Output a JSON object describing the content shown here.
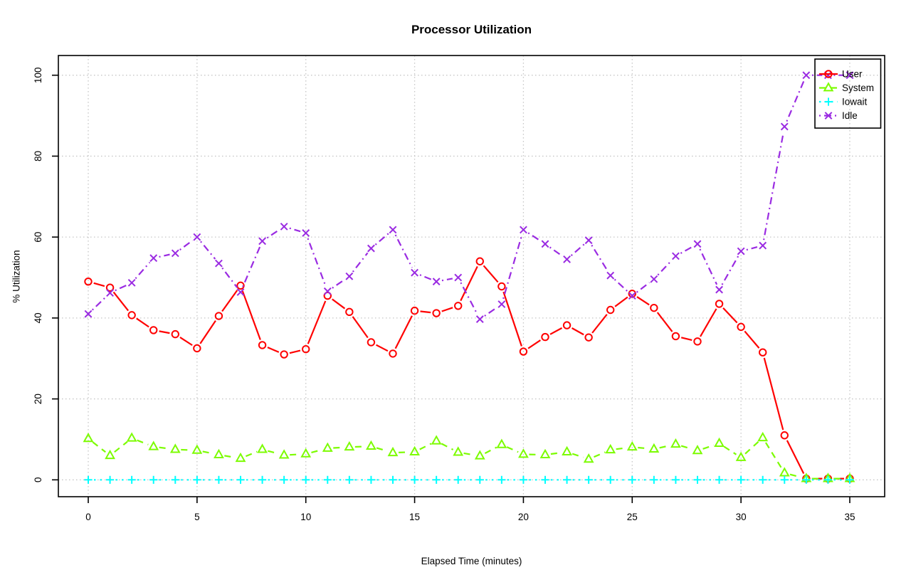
{
  "title": "Processor Utilization",
  "x_axis": {
    "label": "Elapsed Time (minutes)",
    "ticks": [
      0,
      5,
      10,
      15,
      20,
      25,
      30,
      35
    ]
  },
  "y_axis": {
    "label": "% Utilization",
    "ticks": [
      0,
      20,
      40,
      60,
      80,
      100
    ]
  },
  "legend": {
    "position": "top-right",
    "items": [
      "User",
      "System",
      "Iowait",
      "Idle"
    ]
  },
  "colors": {
    "user": "#ff0000",
    "system": "#7cfc00",
    "iowait": "#00ffff",
    "idle": "#9a2be2",
    "grid": "#c6c6c6",
    "axis": "#000000"
  },
  "chart_data": {
    "type": "line",
    "title": "Processor Utilization",
    "xlabel": "Elapsed Time (minutes)",
    "ylabel": "% Utilization",
    "xlim": [
      0,
      35
    ],
    "ylim": [
      0,
      100
    ],
    "grid": true,
    "legend_position": "top-right",
    "x": [
      0,
      1,
      2,
      3,
      4,
      5,
      6,
      7,
      8,
      9,
      10,
      11,
      12,
      13,
      14,
      15,
      16,
      17,
      18,
      19,
      20,
      21,
      22,
      23,
      24,
      25,
      26,
      27,
      28,
      29,
      30,
      31,
      32,
      33,
      34,
      35
    ],
    "series": [
      {
        "name": "User",
        "color": "#ff0000",
        "marker": "circle",
        "linestyle": "solid",
        "values": [
          49,
          47.5,
          40.7,
          37,
          36,
          32.5,
          40.5,
          48,
          33.3,
          31,
          32.3,
          45.5,
          41.5,
          34,
          31.2,
          41.8,
          41.2,
          43,
          54,
          47.8,
          31.7,
          35.3,
          38.2,
          35.2,
          42,
          46,
          42.5,
          35.5,
          34.2,
          43.5,
          37.8,
          31.5,
          11,
          0.3,
          0.3,
          0.3
        ]
      },
      {
        "name": "System",
        "color": "#7cfc00",
        "marker": "triangle",
        "linestyle": "dashed",
        "values": [
          10.2,
          6,
          10.3,
          8.2,
          7.5,
          7.3,
          6.2,
          5.3,
          7.5,
          6.1,
          6.4,
          7.8,
          8.1,
          8.3,
          6.7,
          6.9,
          9.6,
          6.8,
          5.9,
          8.7,
          6.3,
          6.2,
          6.9,
          5.1,
          7.4,
          8.1,
          7.6,
          8.8,
          7.2,
          9,
          5.5,
          10.4,
          1.7,
          0.3,
          0.3,
          0.3
        ]
      },
      {
        "name": "Iowait",
        "color": "#00ffff",
        "marker": "plus",
        "linestyle": "dotted",
        "values": [
          0,
          0,
          0,
          0,
          0,
          0,
          0,
          0,
          0,
          0,
          0,
          0,
          0,
          0,
          0,
          0,
          0,
          0,
          0,
          0,
          0,
          0,
          0,
          0,
          0,
          0,
          0,
          0,
          0,
          0,
          0,
          0,
          0,
          0,
          0,
          0
        ]
      },
      {
        "name": "Idle",
        "color": "#9a2be2",
        "marker": "x",
        "linestyle": "dashdot",
        "values": [
          41,
          46.2,
          48.7,
          54.8,
          56,
          60,
          53.5,
          46.4,
          59,
          62.6,
          61,
          46.6,
          50.3,
          57.2,
          61.8,
          51.2,
          49,
          50,
          39.7,
          43.4,
          61.8,
          58.3,
          54.5,
          59.2,
          50.5,
          45.5,
          49.6,
          55.3,
          58.3,
          47,
          56.5,
          57.9,
          87.3,
          100,
          100,
          100
        ]
      }
    ]
  }
}
